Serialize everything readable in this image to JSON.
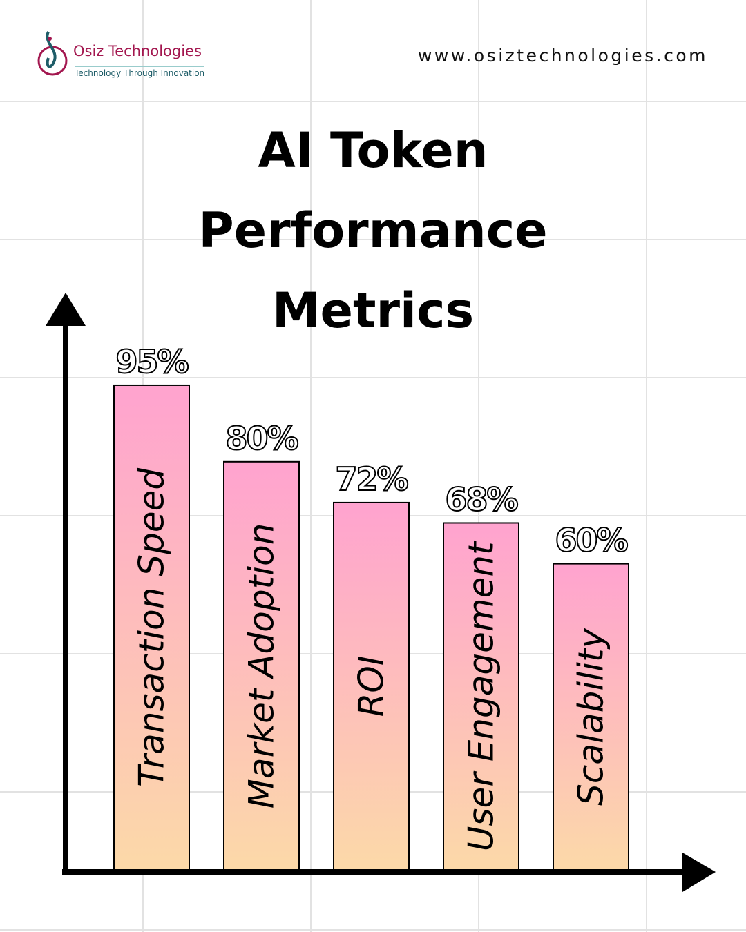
{
  "header": {
    "brand": "Osiz Technologies",
    "tagline": "Technology Through Innovation",
    "url": "www.osiztechnologies.com"
  },
  "chart_data": {
    "type": "bar",
    "title": "AI Token Performance Metrics",
    "categories": [
      "Transaction Speed",
      "Market Adoption",
      "ROI",
      "User Engagement",
      "Scalability"
    ],
    "values": [
      95,
      80,
      72,
      68,
      60
    ],
    "value_labels": [
      "95%",
      "80%",
      "72%",
      "68%",
      "60%"
    ],
    "ylim": [
      0,
      100
    ],
    "colors": [
      "#ffa3cf",
      "#fcd9a8"
    ]
  }
}
